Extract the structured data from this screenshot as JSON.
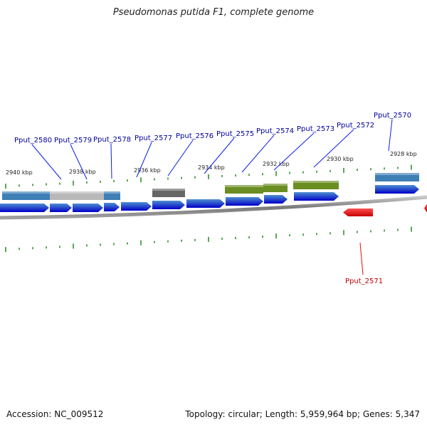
{
  "title": "Pseudomonas putida F1, complete genome",
  "footer": {
    "accession": "Accession: NC_009512",
    "summary": "Topology: circular; Length: 5,959,964 bp; Genes: 5,347"
  },
  "colors": {
    "forward_gene": "#0a1ee8",
    "reverse_gene": "#e80a0a",
    "forward_label": "#00009a",
    "reverse_label": "#c00000",
    "tick": "#1f8a1f",
    "backbone": "#8a8a8a",
    "feature_blue": "#3e7fb5",
    "feature_grey": "#b8b8b8",
    "feature_dark": "#666666",
    "feature_green": "#6b8e23"
  },
  "scale_labels": [
    "2940 kbp",
    "2938 kbp",
    "2936 kbp",
    "2934 kbp",
    "2932 kbp",
    "2930 kbp",
    "2928 kbp"
  ],
  "forward_gene_labels": [
    "Pput_2580",
    "Pput_2579",
    "Pput_2578",
    "Pput_2577",
    "Pput_2576",
    "Pput_2575",
    "Pput_2574",
    "Pput_2573",
    "Pput_2572",
    "Pput_2570"
  ],
  "reverse_gene_labels": [
    "Pput_2571"
  ]
}
